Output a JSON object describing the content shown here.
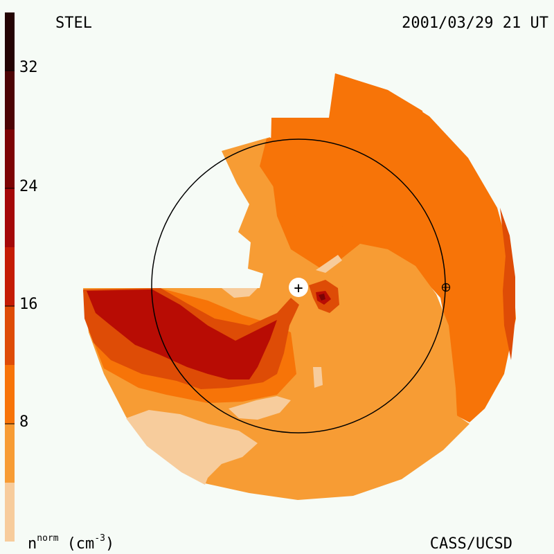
{
  "header": {
    "instrument": "STEL",
    "datetime": "2001/03/29 21 UT"
  },
  "footer": {
    "credit": "CASS/UCSD"
  },
  "colorbar": {
    "unit_base": "n",
    "unit_superscript": "norm",
    "unit_open": "(cm",
    "unit_exponent": "-3",
    "unit_close": ")",
    "tick_labels": [
      "8",
      "16",
      "24",
      "32"
    ],
    "bands": [
      {
        "from": 0,
        "to": 4,
        "color": "#f7cc9c"
      },
      {
        "from": 4,
        "to": 8,
        "color": "#f79c34"
      },
      {
        "from": 8,
        "to": 12,
        "color": "#f77408"
      },
      {
        "from": 12,
        "to": 16,
        "color": "#de4c06"
      },
      {
        "from": 16,
        "to": 20,
        "color": "#c41c04"
      },
      {
        "from": 20,
        "to": 24,
        "color": "#a40808"
      },
      {
        "from": 24,
        "to": 28,
        "color": "#7c0404"
      },
      {
        "from": 28,
        "to": 32,
        "color": "#4c0404"
      },
      {
        "from": 32,
        "to": 36,
        "color": "#240404"
      }
    ]
  },
  "markers": {
    "sun_symbol": "+",
    "earth_symbol": "⊕"
  },
  "colors": {
    "background": "#f6fbf6",
    "orbit_line": "#000000"
  }
}
